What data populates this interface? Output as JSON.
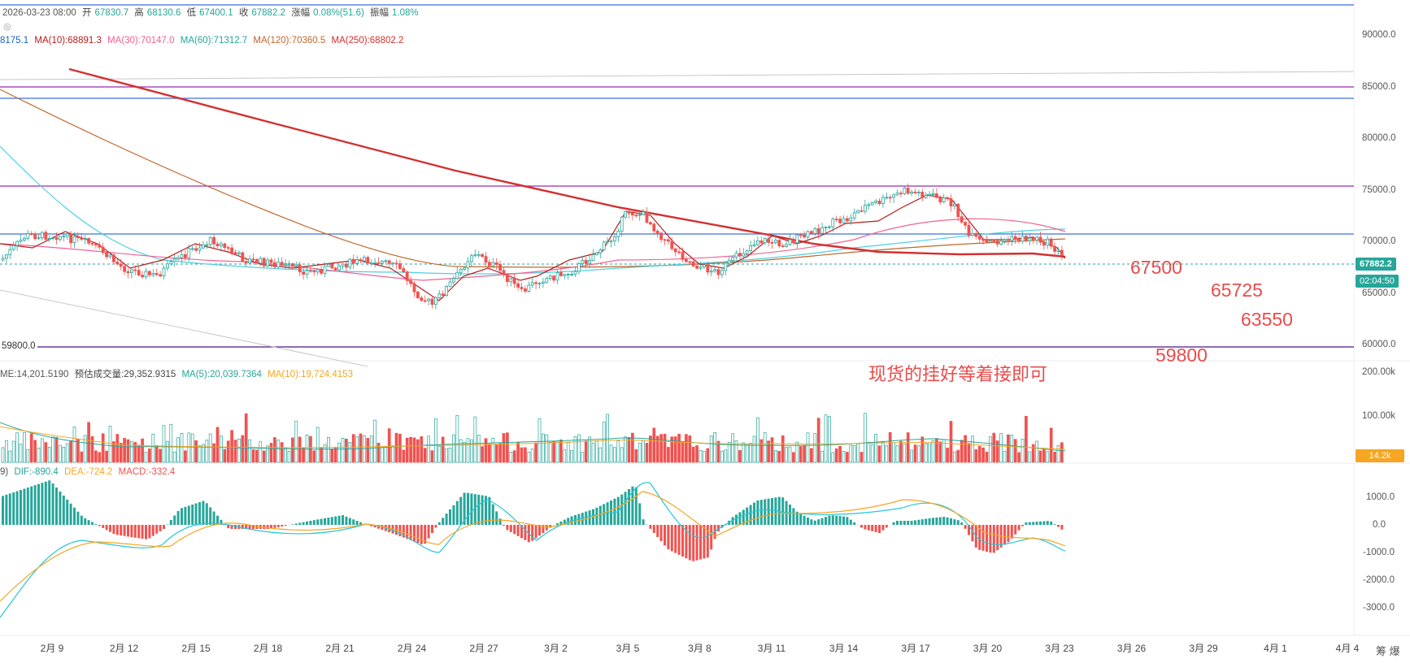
{
  "ohlc_info": {
    "date": "2026-03-23 08:00",
    "open_label": "开",
    "open": "67830.7",
    "high_label": "高",
    "high": "68130.6",
    "low_label": "低",
    "low": "67400.1",
    "close_label": "收",
    "close": "67882.2",
    "change_label": "涨幅",
    "change": "0.08%(51.6)",
    "amplitude_label": "振幅",
    "amplitude": "1.08%"
  },
  "ma_info": {
    "ma5_partial": "8175.1",
    "ma10": "MA(10):68891.3",
    "ma30": "MA(30):70147.0",
    "ma60": "MA(60):71312.7",
    "ma120": "MA(120):70360.5",
    "ma250": "MA(250):68802.2"
  },
  "volume_info": {
    "volume": "ME:14,201.5190",
    "est_volume": "预估成交量:29,352.9315",
    "ma5": "MA(5):20,039.7364",
    "ma10": "MA(10):19,724.4153"
  },
  "macd_info": {
    "params_partial": "9)",
    "dif": "DIF:-890.4",
    "dea": "DEA:-724.2",
    "macd": "MACD:-332.4"
  },
  "price_axis": [
    "90000.0",
    "85000.0",
    "80000.0",
    "75000.0",
    "70000.0",
    "65000.0",
    "60000.0"
  ],
  "volume_axis": [
    "200.00k",
    "100.00k"
  ],
  "macd_axis": [
    "1000.0",
    "0.0",
    "-1000.0",
    "-2000.0",
    "-3000.0"
  ],
  "current_price_badge": "67882.2",
  "countdown_badge": "02:04:50",
  "volume_badge": "14.2k",
  "line_label_59800": "59800.0",
  "date_axis": [
    "2月 9",
    "2月 12",
    "2月 15",
    "2月 18",
    "2月 21",
    "2月 24",
    "2月 27",
    "3月 2",
    "3月 5",
    "3月 8",
    "3月 11",
    "3月 14",
    "3月 17",
    "3月 20",
    "3月 23",
    "3月 26",
    "3月 29",
    "4月 1",
    "4月 4"
  ],
  "corner_text": "筹 爆",
  "annotations": {
    "a1": "67500",
    "a2": "65725",
    "a3": "63550",
    "a4": "59800",
    "note": "现货的挂好等着接即可"
  },
  "colors": {
    "up": "#26a69a",
    "down": "#ef5350",
    "ma10": "#b71c1c",
    "ma30": "#f06292",
    "ma60": "#4dd0e1",
    "ma120": "#c0662b",
    "ma250": "#d32f2f",
    "dif": "#26c6da",
    "dea": "#f5a623",
    "annotation": "#e84c4c"
  }
}
